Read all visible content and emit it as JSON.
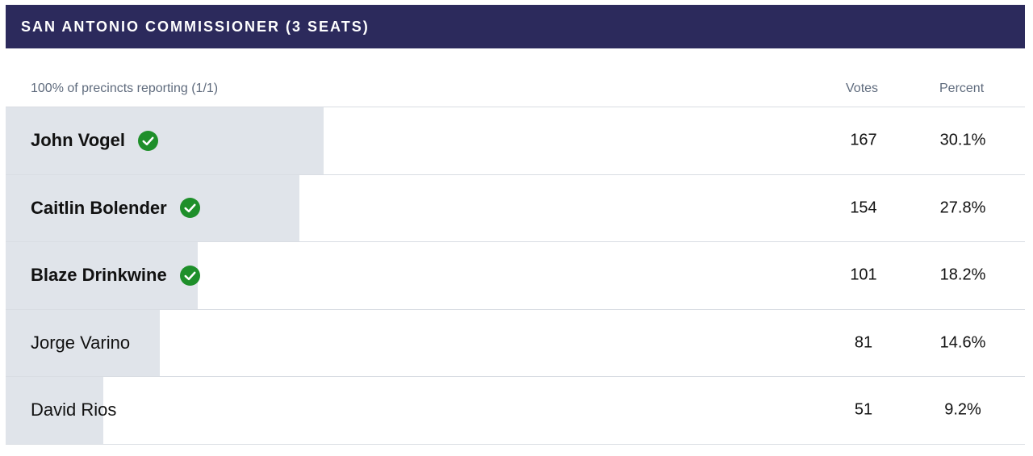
{
  "header": {
    "title": "SAN ANTONIO COMMISSIONER (3 SEATS)"
  },
  "columns": {
    "reporting": "100% of precincts reporting (1/1)",
    "votes": "Votes",
    "percent": "Percent"
  },
  "colors": {
    "header_bg": "#2c2a5c",
    "bar": "#e0e4ea",
    "winner_check": "#1e8f2a"
  },
  "candidates": [
    {
      "name": "John Vogel",
      "votes": "167",
      "percent": "30.1%",
      "share": 0.301,
      "winner": true,
      "icon": "checkmark-circle-icon"
    },
    {
      "name": "Caitlin Bolender",
      "votes": "154",
      "percent": "27.8%",
      "share": 0.278,
      "winner": true,
      "icon": "checkmark-circle-icon"
    },
    {
      "name": "Blaze Drinkwine",
      "votes": "101",
      "percent": "18.2%",
      "share": 0.182,
      "winner": true,
      "icon": "checkmark-circle-icon"
    },
    {
      "name": "Jorge Varino",
      "votes": "81",
      "percent": "14.6%",
      "share": 0.146,
      "winner": false
    },
    {
      "name": "David Rios",
      "votes": "51",
      "percent": "9.2%",
      "share": 0.092,
      "winner": false
    }
  ]
}
